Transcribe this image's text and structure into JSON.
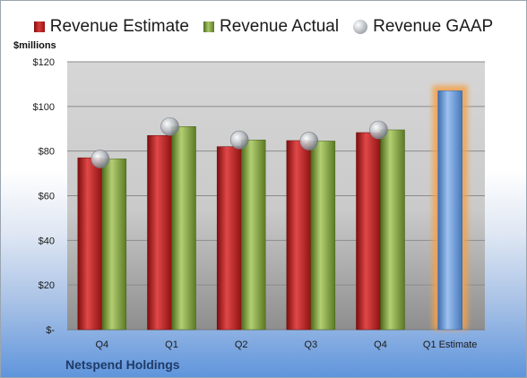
{
  "legend": {
    "estimate": "Revenue Estimate",
    "actual": "Revenue Actual",
    "gaap": "Revenue GAAP"
  },
  "unit_label": "$millions",
  "company": "Netspend Holdings",
  "colors": {
    "estimate": "#c62828",
    "actual": "#8aa64a",
    "gaap": "#b8bcc2",
    "forecast": "#6b9ad8",
    "forecast_glow": "#f5a14a"
  },
  "chart_data": {
    "type": "bar",
    "categories": [
      "Q4",
      "Q1",
      "Q2",
      "Q3",
      "Q4",
      "Q1 Estimate"
    ],
    "series": [
      {
        "name": "Revenue Estimate",
        "values": [
          77,
          87,
          82,
          84.7,
          88.3,
          null
        ]
      },
      {
        "name": "Revenue Actual",
        "values": [
          76.5,
          91,
          85,
          84.5,
          89.5,
          null
        ]
      },
      {
        "name": "Revenue GAAP",
        "values": [
          76.5,
          91,
          85,
          84.5,
          89.5,
          null
        ]
      },
      {
        "name": "Revenue Estimate",
        "values": [
          null,
          null,
          null,
          null,
          null,
          107
        ]
      }
    ],
    "yticks": [
      "$-",
      "$20",
      "$40",
      "$60",
      "$80",
      "$100",
      "$120"
    ],
    "ylim": [
      0,
      120
    ],
    "grid": true,
    "legend_position": "top"
  }
}
